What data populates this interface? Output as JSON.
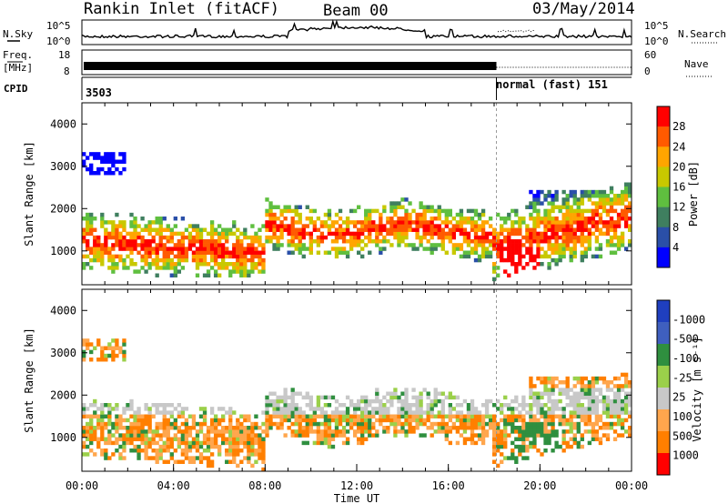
{
  "header": {
    "station": "Rankin Inlet (fitACF)",
    "beam": "Beam 00",
    "date": "03/May/2014"
  },
  "left_labels": {
    "nsky": "N.Sky",
    "freq": "Freq.",
    "mhz": "[MHz]",
    "cpid": "CPID"
  },
  "right_labels": {
    "nsearch": "N.Search",
    "nave": "Nave"
  },
  "noise_axis": {
    "top": "10^5",
    "bottom": "10^0",
    "right_top": "10^5",
    "right_bottom": "10^0"
  },
  "freq_axis": {
    "top": "18",
    "bottom": "8",
    "right_top": "60",
    "right_bottom": "0"
  },
  "cpid": {
    "first": "3503",
    "second": "normal (fast) 151",
    "switch_hour": 18.1
  },
  "colors": {
    "power": [
      "#0000ff",
      "#2a4fa8",
      "#3f7f5f",
      "#5fbf3f",
      "#c8c800",
      "#ffa500",
      "#ff5a00",
      "#ff0000"
    ],
    "velocity": [
      "#ff0000",
      "#ff7f00",
      "#ffa64d",
      "#c8c8c8",
      "#9bd04a",
      "#2f8f3f",
      "#3f5fbf",
      "#1f3fbf"
    ]
  },
  "chart_data": [
    {
      "type": "heatmap",
      "name": "power",
      "ylabel": "Slant Range [km]",
      "yticks": [
        "1000",
        "2000",
        "3000",
        "4000"
      ],
      "ylim": [
        200,
        4500
      ],
      "xlim": [
        0,
        24
      ],
      "colorbar": {
        "label": "Power [dB]",
        "ticks": [
          "4",
          "8",
          "12",
          "16",
          "20",
          "24",
          "28"
        ],
        "range": [
          0,
          30
        ]
      }
    },
    {
      "type": "heatmap",
      "name": "velocity",
      "ylabel": "Slant Range [km]",
      "yticks": [
        "1000",
        "2000",
        "3000",
        "4000"
      ],
      "ylim": [
        200,
        4500
      ],
      "xlim": [
        0,
        24
      ],
      "colorbar": {
        "label": "Velocity [m s⁻¹]",
        "ticks": [
          "1000",
          "500",
          "100",
          "25",
          "-25",
          "-100",
          "-500",
          "-1000"
        ]
      }
    }
  ],
  "xaxis": {
    "label": "Time UT",
    "ticks": [
      "00:00",
      "04:00",
      "08:00",
      "12:00",
      "16:00",
      "20:00",
      "00:00"
    ]
  }
}
